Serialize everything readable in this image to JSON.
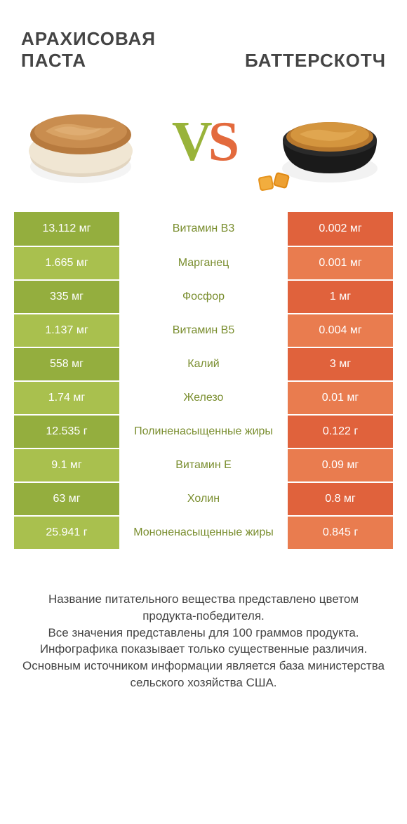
{
  "titles": {
    "left_line1": "АРАХИСОВАЯ",
    "left_line2": "ПАСТА",
    "right": "БАТТЕРСКОТЧ"
  },
  "vs": {
    "v": "V",
    "s": "S"
  },
  "colors": {
    "green_dark": "#94ae3e",
    "green_light": "#a9c04e",
    "orange_dark": "#e0623c",
    "orange_light": "#e97c4f",
    "label_green": "#7a8e2f",
    "label_default": "#555"
  },
  "rows": [
    {
      "left": "13.112 мг",
      "label": "Витамин B3",
      "right": "0.002 мг",
      "winner": "left"
    },
    {
      "left": "1.665 мг",
      "label": "Марганец",
      "right": "0.001 мг",
      "winner": "left"
    },
    {
      "left": "335 мг",
      "label": "Фосфор",
      "right": "1 мг",
      "winner": "left"
    },
    {
      "left": "1.137 мг",
      "label": "Витамин B5",
      "right": "0.004 мг",
      "winner": "left"
    },
    {
      "left": "558 мг",
      "label": "Калий",
      "right": "3 мг",
      "winner": "left"
    },
    {
      "left": "1.74 мг",
      "label": "Железо",
      "right": "0.01 мг",
      "winner": "left"
    },
    {
      "left": "12.535 г",
      "label": "Полиненасыщенные жиры",
      "right": "0.122 г",
      "winner": "left"
    },
    {
      "left": "9.1 мг",
      "label": "Витамин E",
      "right": "0.09 мг",
      "winner": "left"
    },
    {
      "left": "63 мг",
      "label": "Холин",
      "right": "0.8 мг",
      "winner": "left"
    },
    {
      "left": "25.941 г",
      "label": "Мононенасыщенные жиры",
      "right": "0.845 г",
      "winner": "left"
    }
  ],
  "footer": {
    "l1": "Название питательного вещества представлено цветом продукта-победителя.",
    "l2": "Все значения представлены для 100 граммов продукта.",
    "l3": "Инфографика показывает только существенные различия.",
    "l4": "Основным источником информации является база министерства сельского хозяйства США."
  }
}
